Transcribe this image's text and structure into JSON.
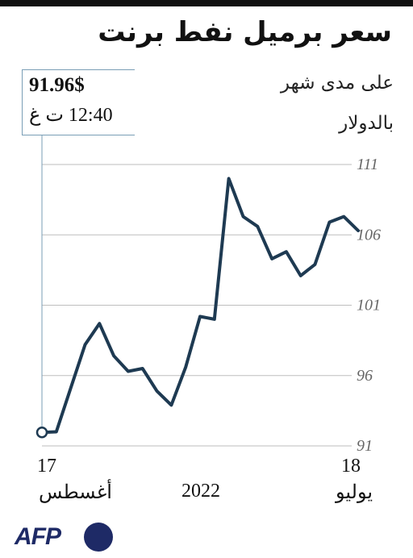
{
  "title": "سعر برميل نفط برنت",
  "subtitle_line1": "على مدى شهر",
  "subtitle_line2": "بالدولار",
  "callout": {
    "value": "91.96$",
    "time": "12:40 ت غ"
  },
  "x_labels": {
    "start_day": "17",
    "start_month": "أغسطس",
    "year": "2022",
    "end_day": "18",
    "end_month": "يوليو"
  },
  "branding": {
    "logo_text": "AFP"
  },
  "colors": {
    "line": "#1e3a52",
    "grid": "#bdbdbd",
    "tick": "#666666",
    "callout_border": "#7a9eb6",
    "brand": "#1e2a66"
  },
  "chart_data": {
    "type": "line",
    "title": "سعر برميل نفط برنت",
    "subtitle": "على مدى شهر بالدولار",
    "xlabel": "",
    "ylabel": "",
    "y_ticks": [
      91,
      96,
      101,
      106,
      111
    ],
    "ylim": [
      91,
      111
    ],
    "x_range_labels": [
      "18 يوليو",
      "17 أغسطس 2022"
    ],
    "x_direction": "right-to-left",
    "grid": true,
    "series": [
      {
        "x": [
          "18 يوليو",
          "19 يوليو",
          "20 يوليو",
          "21 يوليو",
          "22 يوليو",
          "25 يوليو",
          "26 يوليو",
          "27 يوليو",
          "28 يوليو",
          "29 يوليو",
          "1 أغسطس",
          "2 أغسطس",
          "3 أغسطس",
          "4 أغسطس",
          "5 أغسطس",
          "8 أغسطس",
          "9 أغسطس",
          "10 أغسطس",
          "11 أغسطس",
          "12 أغسطس",
          "15 أغسطس",
          "16 أغسطس",
          "17 أغسطس"
        ],
        "values": [
          106.3,
          107.3,
          106.9,
          103.9,
          103.1,
          104.8,
          104.3,
          106.6,
          107.3,
          110.0,
          100.0,
          100.2,
          96.6,
          93.9,
          94.9,
          96.5,
          96.3,
          97.4,
          99.7,
          98.2,
          95.1,
          92.0,
          91.96
        ]
      }
    ],
    "highlight": {
      "label": "91.96$",
      "time": "12:40 ت غ"
    }
  }
}
